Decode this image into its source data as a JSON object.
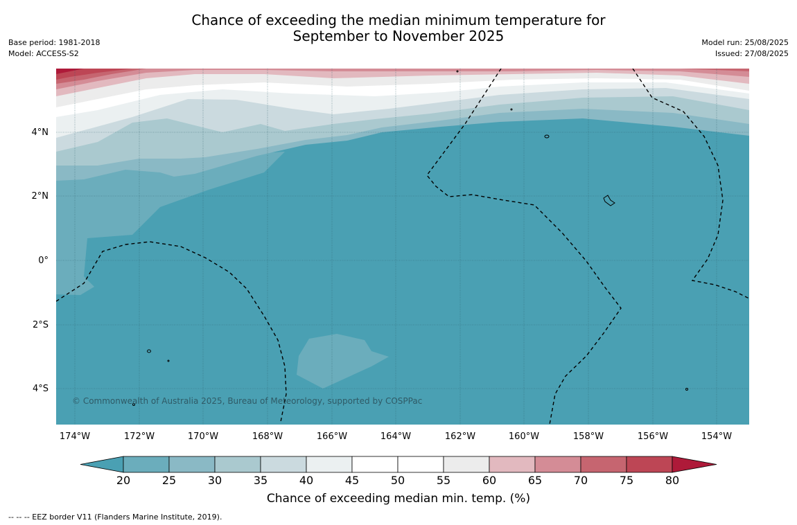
{
  "title_line1": "Chance of exceeding the median minimum temperature for",
  "title_line2": "September to November 2025",
  "meta_left": {
    "base_period": "Base period: 1981-2018",
    "model": "Model: ACCESS-S2"
  },
  "meta_right": {
    "model_run": "Model run: 25/08/2025",
    "issued": "Issued: 27/08/2025"
  },
  "map": {
    "lat_labels": [
      "4°N",
      "2°N",
      "0°",
      "2°S",
      "4°S"
    ],
    "lon_labels": [
      "174°W",
      "172°W",
      "170°W",
      "168°W",
      "166°W",
      "164°W",
      "162°W",
      "160°W",
      "158°W",
      "156°W",
      "154°W"
    ],
    "copyright": "© Commonwealth of Australia 2025, Bureau of Meteorology, supported by COSPPac"
  },
  "colorbar": {
    "label": "Chance of exceeding median min. temp. (%)",
    "ticks": [
      "20",
      "25",
      "30",
      "35",
      "40",
      "45",
      "50",
      "55",
      "60",
      "65",
      "70",
      "75",
      "80"
    ],
    "colors": [
      "#4aa0b3",
      "#6badbc",
      "#8ab9c5",
      "#aac9cf",
      "#cbdadf",
      "#ebf0f1",
      "#ffffff",
      "#ffffff",
      "#ececec",
      "#e2b9bf",
      "#d48c96",
      "#c66570",
      "#bd4655",
      "#ae1a39"
    ]
  },
  "footer": "--  --  -- EEZ border V11 (Flanders Marine Institute, 2019)."
}
